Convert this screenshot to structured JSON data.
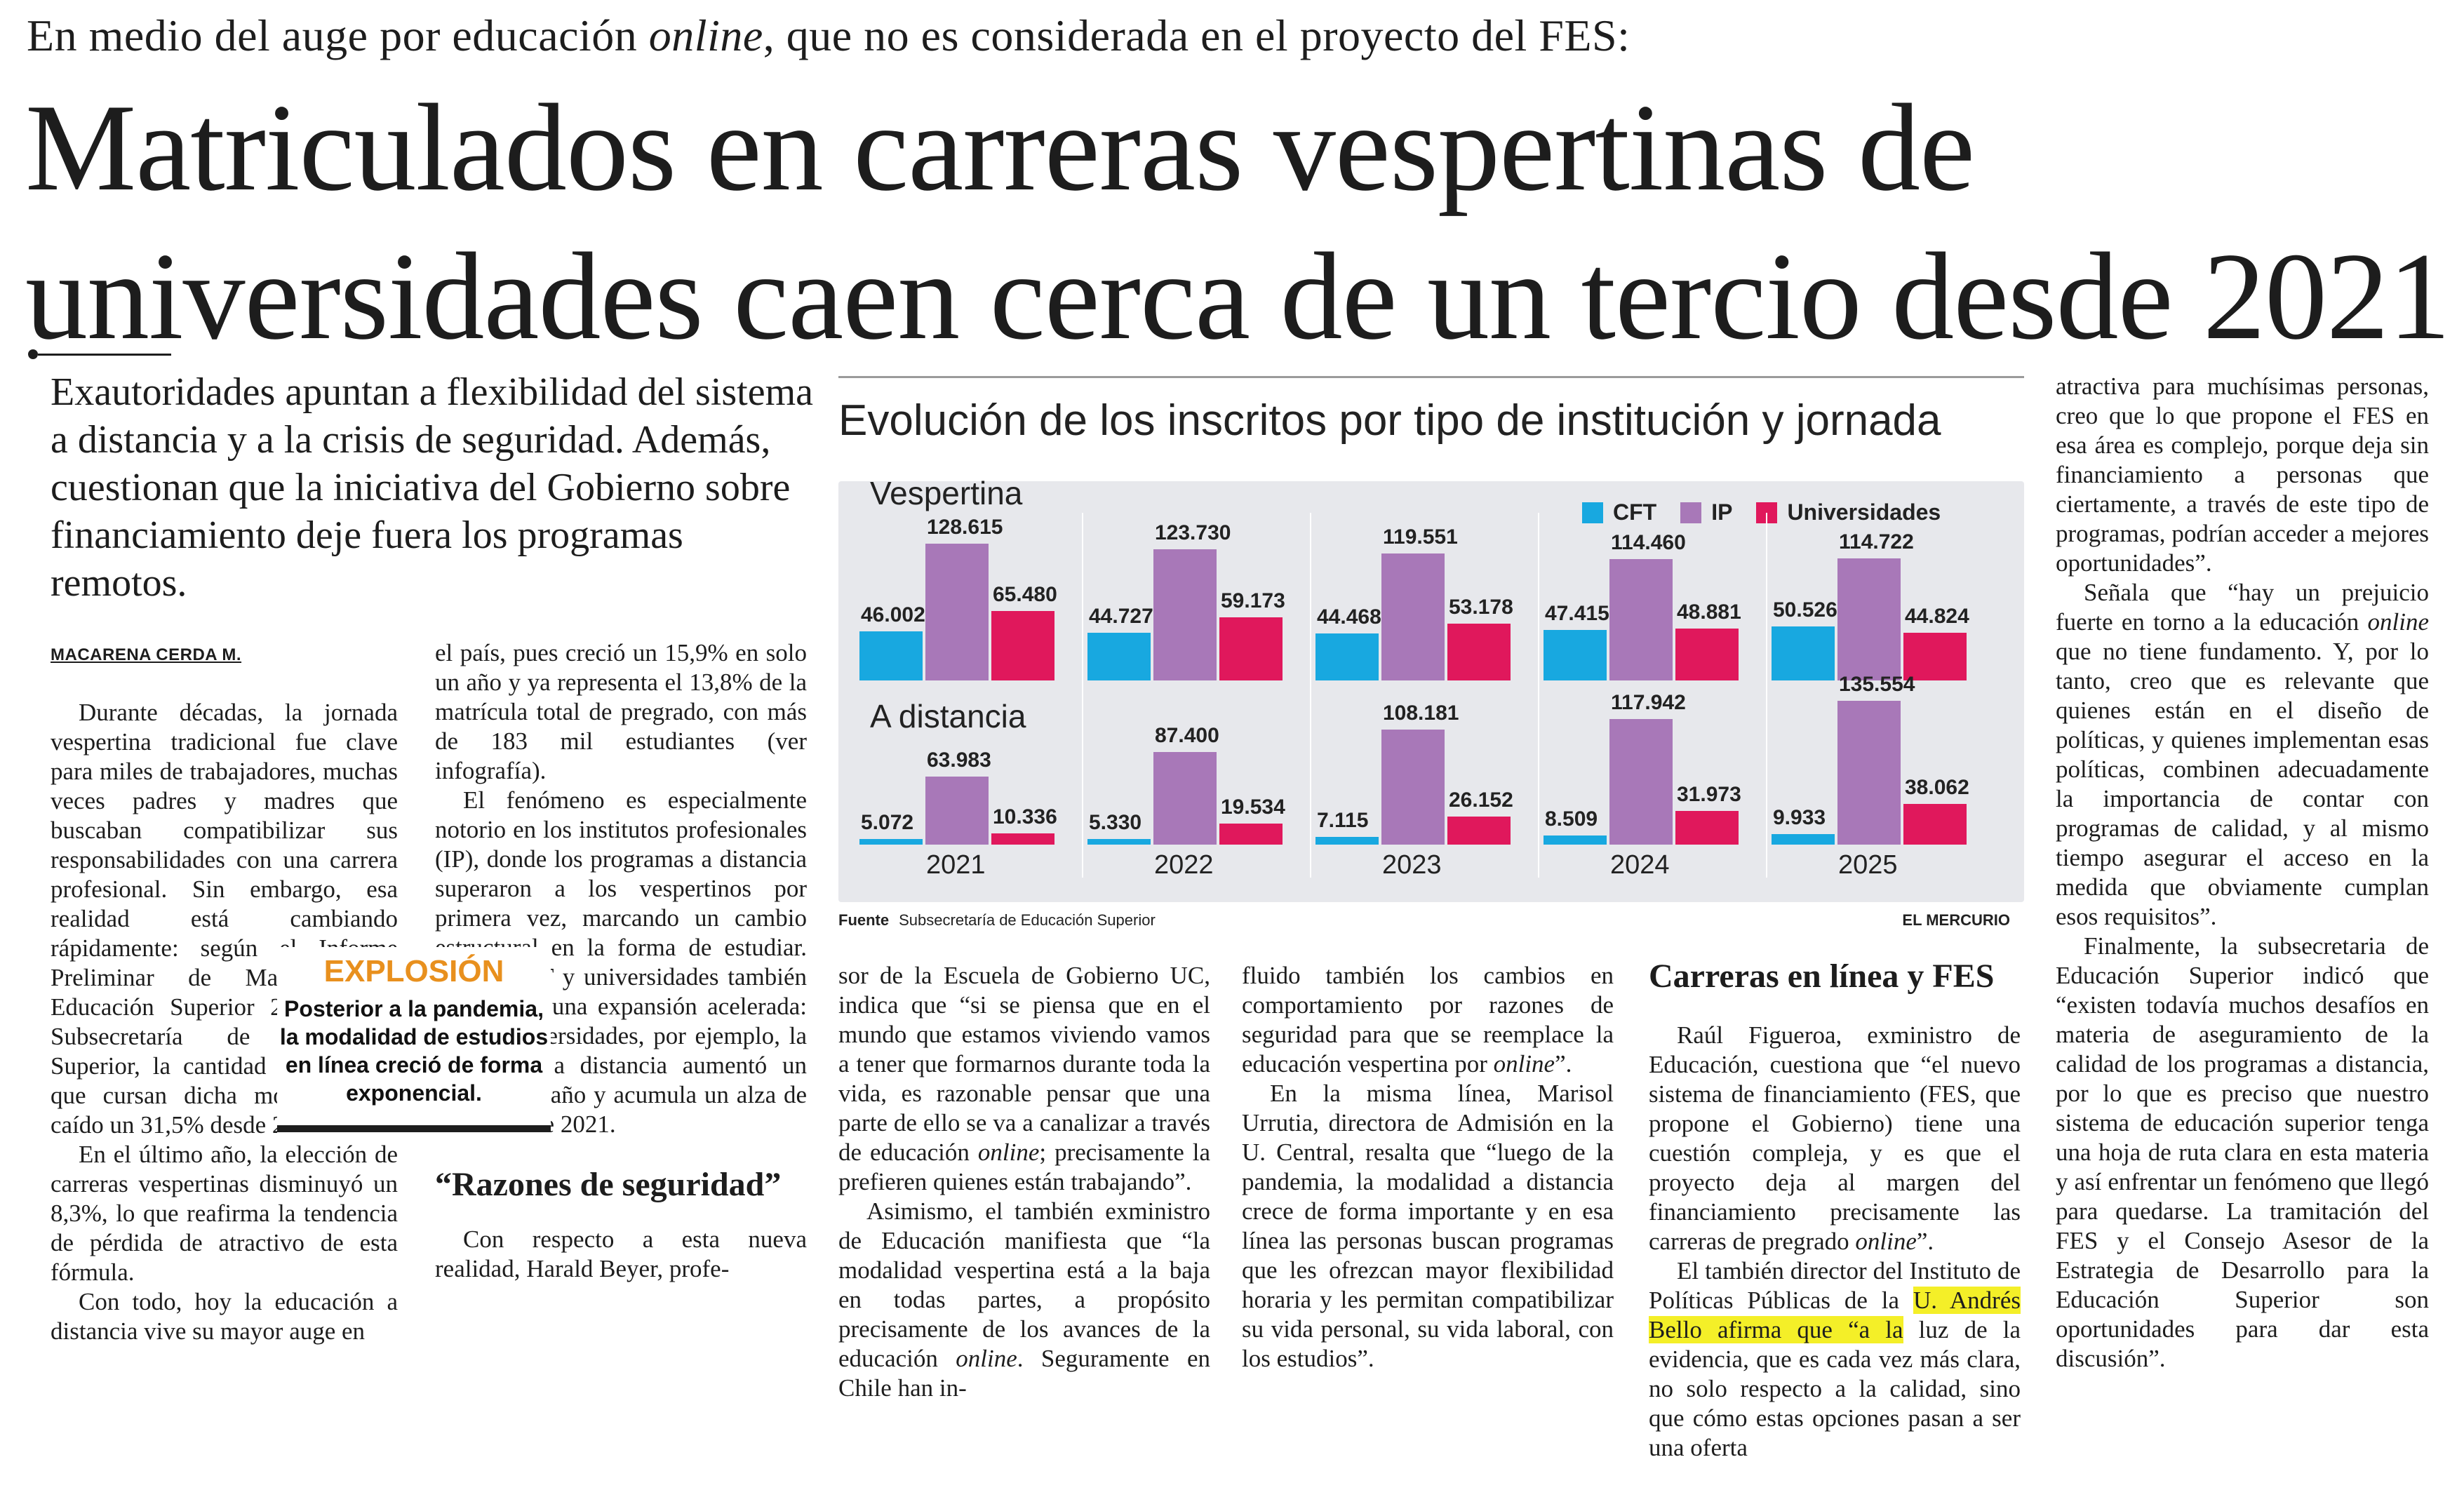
{
  "kicker": {
    "part1": "En medio del auge por educación ",
    "italic": "online",
    "part2": ", que no es considerada en el proyecto del FES:"
  },
  "headline": "Matriculados en carreras vespertinas de universidades caen cerca de un tercio desde 2021",
  "deck": "Exautoridades apuntan a flexibilidad del sistema a distancia y a la crisis de seguridad. Además, cuestionan que la iniciativa del Gobierno sobre financiamiento deje fuera los programas remotos.",
  "byline": "MACARENA CERDA M.",
  "col1": {
    "p1": "Durante décadas, la jornada vespertina tradicional fue clave para miles de trabajadores, muchas veces padres y madres que buscaban compatibilizar sus responsabilidades con una carrera profesional. Sin embargo, esa realidad está cambiando rápidamente: según el Informe Preliminar de Matrícula en Educación Superior 2025, de la Subsecretaría de Educación Superior, la cantidad de alumnos que cursan dicha modalidad ha caído un 31,5% desde 2021.",
    "p2": "En el último año, la elección de carreras vespertinas disminuyó un 8,3%, lo que reafirma la tendencia de pérdida de atractivo de esta fórmula.",
    "p3": "Con todo, hoy la educación a distancia vive su mayor auge en"
  },
  "col2": {
    "p1": "el país, pues creció un 15,9% en solo un año y ya representa el 13,8% de la matrícula total de pregrado, con más de 183 mil estudiantes (ver infografía).",
    "p2": "El fenómeno es especialmente notorio en los institutos profesionales (IP), donde los programas a distancia superaron a los vespertinos por primera vez, marcando un cambio estructural en la forma de estudiar. En los CFT y universidades también se observa una expansión acelerada: en las universidades, por ejemplo, la modalidad a distancia aumentó un 19% en un año y acumula un alza de 268% desde 2021.",
    "subhead": "“Razones de seguridad”",
    "p3": "Con respecto a esta nueva realidad, Harald Beyer, profe-"
  },
  "col3": {
    "p1a": "sor de la Escuela de Gobierno UC, indica que “si se piensa que en el mundo que estamos viviendo vamos a tener que formarnos durante toda la vida, es razonable pensar que una parte de ello se va a canalizar a través de educación ",
    "p1i": "online",
    "p1b": "; precisamente la prefieren quienes están trabajando”.",
    "p2a": "Asimismo, el también exministro de Educación manifiesta que “la modalidad vespertina está a la baja en todas partes, a propósito precisamente de los avances de la educación ",
    "p2i": "online",
    "p2b": ". Seguramente en Chile han in-"
  },
  "col4": {
    "p1a": "fluido también los cambios en comportamiento por razones de seguridad para que se reemplace la educación vespertina por ",
    "p1i": "online",
    "p1b": "”.",
    "p2": "En la misma línea, Marisol Urrutia, directora de Admisión en la U. Central, resalta que “luego de la pandemia, la modalidad a distancia crece de forma importante y en esa línea las personas buscan programas que les ofrezcan mayor flexibilidad horaria y les permitan compatibilizar su vida personal, su vida laboral, con los estudios”."
  },
  "col5": {
    "subhead": "Carreras en línea y FES",
    "p1a": "Raúl Figueroa, exministro de Educación, cuestiona que “el nuevo sistema de financiamiento (FES, que propone el Gobierno) tiene una cuestión compleja, y es que el proyecto deja al margen del financiamiento precisamente las carreras de pregrado ",
    "p1i": "online",
    "p1b": "”.",
    "p2a": "El también director del Instituto de Políticas Públicas de la ",
    "p2h": "U. Andrés Bello afirma que “a la",
    "p2b": " luz de la evidencia, que es cada vez más clara, no solo respecto a la calidad, sino que cómo estas opciones pasan a ser una oferta"
  },
  "col6": {
    "p1": "atractiva para muchísimas personas, creo que lo que propone el FES en esa área es complejo, porque deja sin financiamiento a personas que ciertamente, a través de este tipo de programas, podrían acceder a mejores oportunidades”.",
    "p2a": "Señala que “hay un prejuicio fuerte en torno a la educación ",
    "p2i": "online",
    "p2b": " que no tiene fundamento. Y, por lo tanto, creo que es relevante que quienes están en el diseño de políticas, y quienes implementan esas políticas, combinen adecuadamente la importancia de contar con programas de calidad, y al mismo tiempo asegurar el acceso en la medida que obviamente cumplan esos requisitos”.",
    "p3": "Finalmente, la subsecretaria de Educación Superior indicó que “existen todavía muchos desafíos en materia de aseguramiento de la calidad de los programas a distancia, por lo que es preciso que nuestro sistema de educación superior tenga una hoja de ruta clara en esta materia y así enfrentar un fenómeno que llegó para quedarse. La tramitación del FES y el Consejo Asesor de la Estrategia de Desarrollo para la Educación Superior son oportunidades para dar esta discusión”."
  },
  "callout": {
    "title": "EXPLOSIÓN",
    "body": "Posterior a la pandemia, la modalidad de estudios en línea creció de forma exponencial."
  },
  "chart_data": {
    "type": "bar",
    "title": "Evolución de los inscritos por tipo de institución y jornada",
    "categories": [
      "2021",
      "2022",
      "2023",
      "2024",
      "2025"
    ],
    "legend": [
      "CFT",
      "IP",
      "Universidades"
    ],
    "legend_position": "top-right",
    "colors": {
      "CFT": "#18a8e0",
      "IP": "#a878b8",
      "Universidades": "#e0185c"
    },
    "groups": [
      {
        "name": "Vespertina",
        "series": [
          {
            "name": "CFT",
            "values": [
              46002,
              44727,
              44468,
              47415,
              50526
            ],
            "labels": [
              "46.002",
              "44.727",
              "44.468",
              "47.415",
              "50.526"
            ]
          },
          {
            "name": "IP",
            "values": [
              128615,
              123730,
              119551,
              114460,
              114722
            ],
            "labels": [
              "128.615",
              "123.730",
              "119.551",
              "114.460",
              "114.722"
            ]
          },
          {
            "name": "Universidades",
            "values": [
              65480,
              59173,
              53178,
              48881,
              44824
            ],
            "labels": [
              "65.480",
              "59.173",
              "53.178",
              "48.881",
              "44.824"
            ]
          }
        ]
      },
      {
        "name": "A distancia",
        "series": [
          {
            "name": "CFT",
            "values": [
              5072,
              5330,
              7115,
              8509,
              9933
            ],
            "labels": [
              "5.072",
              "5.330",
              "7.115",
              "8.509",
              "9.933"
            ]
          },
          {
            "name": "IP",
            "values": [
              63983,
              87400,
              108181,
              117942,
              135554
            ],
            "labels": [
              "63.983",
              "87.400",
              "108.181",
              "117.942",
              "135.554"
            ]
          },
          {
            "name": "Universidades",
            "values": [
              10336,
              19534,
              26152,
              31973,
              38062
            ],
            "labels": [
              "10.336",
              "19.534",
              "26.152",
              "31.973",
              "38.062"
            ]
          }
        ]
      }
    ],
    "source_label": "Fuente",
    "source": "Subsecretaría de Educación Superior",
    "brand": "EL MERCURIO"
  }
}
